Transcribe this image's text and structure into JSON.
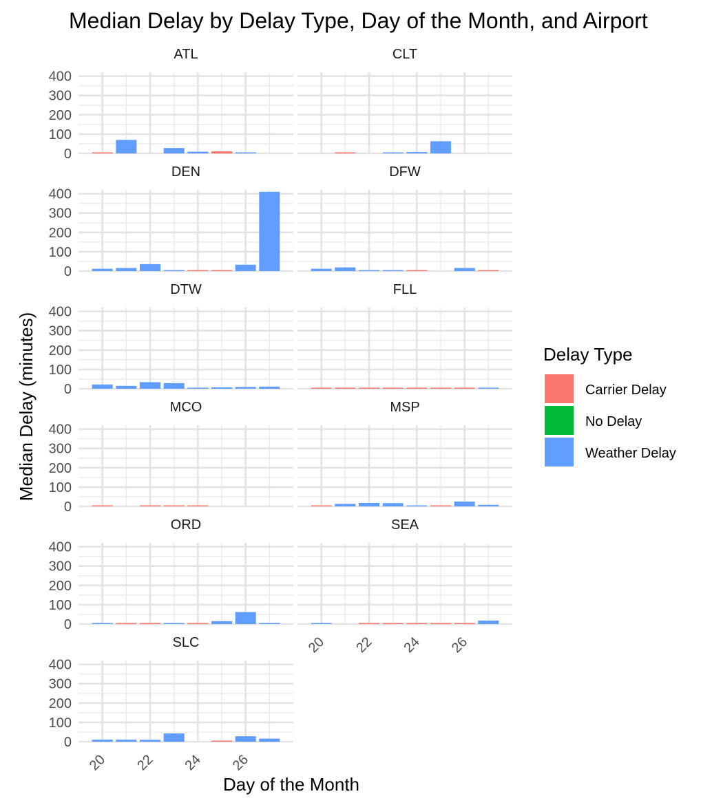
{
  "chart_data": {
    "type": "bar",
    "title": "Median Delay by Delay Type, Day of the Month, and Airport",
    "xlabel": "Day of the Month",
    "ylabel": "Median Delay (minutes)",
    "ylim": [
      0,
      420
    ],
    "yticks": [
      0,
      100,
      200,
      300,
      400
    ],
    "xlim": [
      19,
      28
    ],
    "xticks": [
      20,
      22,
      24,
      26
    ],
    "grid": true,
    "legend": {
      "title": "Delay Type",
      "placement": "right",
      "entries": [
        {
          "name": "Carrier Delay",
          "color": "#F8766D"
        },
        {
          "name": "No Delay",
          "color": "#00BA38"
        },
        {
          "name": "Weather Delay",
          "color": "#619CFF"
        }
      ]
    },
    "panels": [
      {
        "airport": "ATL",
        "bars": [
          {
            "day": 20,
            "value": 3,
            "type": "Carrier Delay"
          },
          {
            "day": 21,
            "value": 70,
            "type": "Weather Delay"
          },
          {
            "day": 23,
            "value": 28,
            "type": "Weather Delay"
          },
          {
            "day": 24,
            "value": 9,
            "type": "Weather Delay"
          },
          {
            "day": 25,
            "value": 11,
            "type": "Carrier Delay"
          },
          {
            "day": 26,
            "value": 4,
            "type": "Weather Delay"
          }
        ]
      },
      {
        "airport": "CLT",
        "bars": [
          {
            "day": 21,
            "value": 5,
            "type": "Carrier Delay"
          },
          {
            "day": 23,
            "value": 3,
            "type": "Weather Delay"
          },
          {
            "day": 24,
            "value": 7,
            "type": "Weather Delay"
          },
          {
            "day": 25,
            "value": 63,
            "type": "Weather Delay"
          }
        ]
      },
      {
        "airport": "DEN",
        "bars": [
          {
            "day": 20,
            "value": 12,
            "type": "Weather Delay"
          },
          {
            "day": 21,
            "value": 16,
            "type": "Weather Delay"
          },
          {
            "day": 22,
            "value": 36,
            "type": "Weather Delay"
          },
          {
            "day": 23,
            "value": 2,
            "type": "Weather Delay"
          },
          {
            "day": 24,
            "value": 2,
            "type": "Carrier Delay"
          },
          {
            "day": 25,
            "value": 3,
            "type": "Carrier Delay"
          },
          {
            "day": 26,
            "value": 33,
            "type": "Weather Delay"
          },
          {
            "day": 27,
            "value": 410,
            "type": "Weather Delay"
          }
        ]
      },
      {
        "airport": "DFW",
        "bars": [
          {
            "day": 20,
            "value": 12,
            "type": "Weather Delay"
          },
          {
            "day": 21,
            "value": 19,
            "type": "Weather Delay"
          },
          {
            "day": 22,
            "value": 4,
            "type": "Weather Delay"
          },
          {
            "day": 23,
            "value": 3,
            "type": "Weather Delay"
          },
          {
            "day": 24,
            "value": 2,
            "type": "Carrier Delay"
          },
          {
            "day": 26,
            "value": 16,
            "type": "Weather Delay"
          },
          {
            "day": 27,
            "value": 2,
            "type": "Carrier Delay"
          }
        ]
      },
      {
        "airport": "DTW",
        "bars": [
          {
            "day": 20,
            "value": 22,
            "type": "Weather Delay"
          },
          {
            "day": 21,
            "value": 15,
            "type": "Weather Delay"
          },
          {
            "day": 22,
            "value": 34,
            "type": "Weather Delay"
          },
          {
            "day": 23,
            "value": 29,
            "type": "Weather Delay"
          },
          {
            "day": 24,
            "value": 3,
            "type": "Weather Delay"
          },
          {
            "day": 25,
            "value": 7,
            "type": "Weather Delay"
          },
          {
            "day": 26,
            "value": 9,
            "type": "Weather Delay"
          },
          {
            "day": 27,
            "value": 11,
            "type": "Weather Delay"
          }
        ]
      },
      {
        "airport": "FLL",
        "bars": [
          {
            "day": 20,
            "value": 2,
            "type": "Carrier Delay"
          },
          {
            "day": 21,
            "value": 4,
            "type": "Carrier Delay"
          },
          {
            "day": 22,
            "value": 2,
            "type": "Carrier Delay"
          },
          {
            "day": 23,
            "value": 2,
            "type": "Carrier Delay"
          },
          {
            "day": 24,
            "value": 2,
            "type": "Carrier Delay"
          },
          {
            "day": 25,
            "value": 2,
            "type": "Carrier Delay"
          },
          {
            "day": 26,
            "value": 2,
            "type": "Carrier Delay"
          },
          {
            "day": 27,
            "value": 5,
            "type": "Weather Delay"
          }
        ]
      },
      {
        "airport": "MCO",
        "bars": [
          {
            "day": 20,
            "value": 2,
            "type": "Carrier Delay"
          },
          {
            "day": 22,
            "value": 2,
            "type": "Carrier Delay"
          },
          {
            "day": 23,
            "value": 2,
            "type": "Carrier Delay"
          },
          {
            "day": 24,
            "value": 2,
            "type": "Carrier Delay"
          }
        ]
      },
      {
        "airport": "MSP",
        "bars": [
          {
            "day": 20,
            "value": 2,
            "type": "Carrier Delay"
          },
          {
            "day": 21,
            "value": 13,
            "type": "Weather Delay"
          },
          {
            "day": 22,
            "value": 18,
            "type": "Weather Delay"
          },
          {
            "day": 23,
            "value": 17,
            "type": "Weather Delay"
          },
          {
            "day": 24,
            "value": 3,
            "type": "Weather Delay"
          },
          {
            "day": 25,
            "value": 2,
            "type": "Carrier Delay"
          },
          {
            "day": 26,
            "value": 25,
            "type": "Weather Delay"
          },
          {
            "day": 27,
            "value": 8,
            "type": "Weather Delay"
          }
        ]
      },
      {
        "airport": "ORD",
        "bars": [
          {
            "day": 20,
            "value": 3,
            "type": "Weather Delay"
          },
          {
            "day": 21,
            "value": 2,
            "type": "Carrier Delay"
          },
          {
            "day": 22,
            "value": 2,
            "type": "Carrier Delay"
          },
          {
            "day": 23,
            "value": 1,
            "type": "Weather Delay"
          },
          {
            "day": 24,
            "value": 2,
            "type": "Carrier Delay"
          },
          {
            "day": 25,
            "value": 15,
            "type": "Weather Delay"
          },
          {
            "day": 26,
            "value": 62,
            "type": "Weather Delay"
          },
          {
            "day": 27,
            "value": 3,
            "type": "Weather Delay"
          }
        ]
      },
      {
        "airport": "SEA",
        "bars": [
          {
            "day": 20,
            "value": 3,
            "type": "Weather Delay"
          },
          {
            "day": 22,
            "value": 2,
            "type": "Carrier Delay"
          },
          {
            "day": 23,
            "value": 4,
            "type": "Carrier Delay"
          },
          {
            "day": 24,
            "value": 4,
            "type": "Carrier Delay"
          },
          {
            "day": 25,
            "value": 1,
            "type": "Carrier Delay"
          },
          {
            "day": 26,
            "value": 5,
            "type": "Carrier Delay"
          },
          {
            "day": 27,
            "value": 18,
            "type": "Weather Delay"
          }
        ]
      },
      {
        "airport": "SLC",
        "bars": [
          {
            "day": 20,
            "value": 11,
            "type": "Weather Delay"
          },
          {
            "day": 21,
            "value": 11,
            "type": "Weather Delay"
          },
          {
            "day": 22,
            "value": 10,
            "type": "Weather Delay"
          },
          {
            "day": 23,
            "value": 43,
            "type": "Weather Delay"
          },
          {
            "day": 25,
            "value": 2,
            "type": "Carrier Delay"
          },
          {
            "day": 26,
            "value": 28,
            "type": "Weather Delay"
          },
          {
            "day": 27,
            "value": 16,
            "type": "Weather Delay"
          }
        ]
      }
    ]
  }
}
